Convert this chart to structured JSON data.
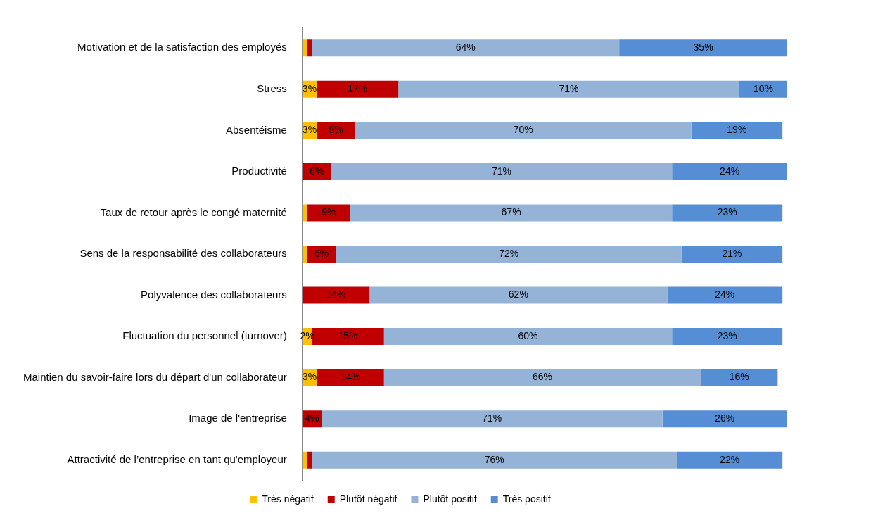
{
  "chart_data": {
    "type": "bar",
    "orientation": "horizontal",
    "stacked": true,
    "grid": false,
    "legend": "bottom",
    "tick_labels": "y",
    "xlim": [
      0,
      101
    ],
    "categories": [
      "Motivation et de la satisfaction des employés",
      "Stress",
      "Absentéisme",
      "Productivité",
      "Taux de retour après le congé maternité",
      "Sens de la responsabilité des collaborateurs",
      "Polyvalence des collaborateurs",
      "Fluctuation du personnel (turnover)",
      "Maintien du savoir-faire lors du départ d'un collaborateur",
      "Image de l'entreprise",
      "Attractivité de l’entreprise en tant qu'employeur"
    ],
    "series": [
      {
        "name": "Très négatif",
        "color": "#ffc000",
        "values": [
          1,
          3,
          3,
          0,
          1,
          1,
          0,
          2,
          3,
          0,
          1
        ],
        "value_labels": [
          null,
          "3%",
          "3%",
          null,
          null,
          null,
          null,
          "2%",
          "3%",
          null,
          null
        ]
      },
      {
        "name": "Plutôt négatif",
        "color": "#c00000",
        "values": [
          1,
          17,
          8,
          6,
          9,
          6,
          14,
          15,
          14,
          4,
          1
        ],
        "value_labels": [
          null,
          "17%",
          "8%",
          "6%",
          "9%",
          "6%",
          "14%",
          "15%",
          "14%",
          "4%",
          null
        ]
      },
      {
        "name": "Plutôt positif",
        "color": "#95b3d7",
        "values": [
          64,
          71,
          70,
          71,
          67,
          72,
          62,
          60,
          66,
          71,
          76
        ],
        "value_labels": [
          "64%",
          "71%",
          "70%",
          "71%",
          "67%",
          "72%",
          "62%",
          "60%",
          "66%",
          "71%",
          "76%"
        ]
      },
      {
        "name": "Très positif",
        "color": "#558ed5",
        "values": [
          35,
          10,
          19,
          24,
          23,
          21,
          24,
          23,
          16,
          26,
          22
        ],
        "value_labels": [
          "35%",
          "10%",
          "19%",
          "24%",
          "23%",
          "21%",
          "24%",
          "23%",
          "16%",
          "26%",
          "22%"
        ]
      }
    ]
  }
}
